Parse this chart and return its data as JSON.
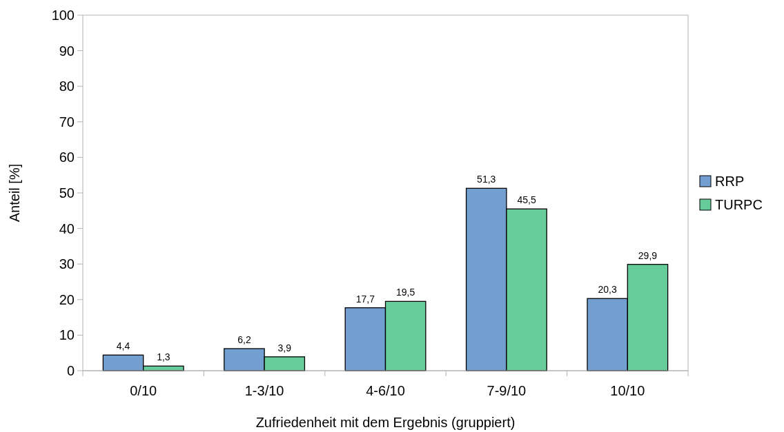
{
  "chart_data": {
    "type": "bar",
    "xlabel": "Zufriedenheit mit dem Ergebnis (gruppiert)",
    "ylabel": "Anteil [%]",
    "categories": [
      "0/10",
      "1-3/10",
      "4-6/10",
      "7-9/10",
      "10/10"
    ],
    "series": [
      {
        "name": "RRP",
        "color": "#729fcf",
        "values": [
          4.4,
          6.2,
          17.7,
          51.3,
          20.3
        ],
        "value_labels": [
          "4,4",
          "6,2",
          "17,7",
          "51,3",
          "20,3"
        ]
      },
      {
        "name": "TURPC",
        "color": "#66cc99",
        "values": [
          1.3,
          3.9,
          19.5,
          45.5,
          29.9
        ],
        "value_labels": [
          "1,3",
          "3,9",
          "19,5",
          "45,5",
          "29,9"
        ]
      }
    ],
    "ylim": [
      0,
      100
    ],
    "yticks": [
      0,
      10,
      20,
      30,
      40,
      50,
      60,
      70,
      80,
      90,
      100
    ],
    "grid": false,
    "legend": "right"
  }
}
